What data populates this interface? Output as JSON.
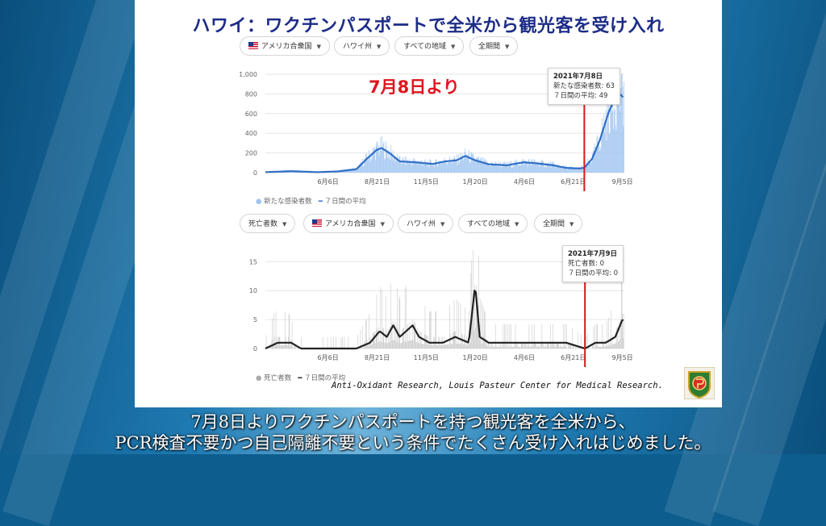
{
  "slide_title": "ハワイ：ワクチンパスポートで全米から観光客を受け入れ",
  "filters_top": [
    "アメリカ合衆国",
    "ハワイ州",
    "すべての地域",
    "全期間"
  ],
  "filters_bottom": [
    "死亡者数",
    "アメリカ合衆国",
    "ハワイ州",
    "すべての地域",
    "全期間"
  ],
  "overlay_label": "7月8日より",
  "tooltip_top": {
    "title": "2021年7月8日",
    "line1": "新たな感染者数: 63",
    "line2": "７日間の平均: 49"
  },
  "tooltip_bottom": {
    "title": "2021年7月9日",
    "line1": "死亡者数: 0",
    "line2": "７日間の平均: 0"
  },
  "legend_top": {
    "series1": "新たな感染者数",
    "series2": "７日間の平均"
  },
  "legend_bottom": {
    "series1": "死亡者数",
    "series2": "７日間の平均"
  },
  "credit": "Anti-Oxidant Research, Louis Pasteur Center for Medical Research.",
  "caption_line1": "7月8日よりワクチンパスポートを持つ観光客を全米から、",
  "caption_line2": "PCR検査不要かつ自己隔離不要という条件でたくさん受け入れはじめました。",
  "colors": {
    "title": "#1d2c88",
    "cases_bar": "#9ec3f0",
    "cases_line": "#2f6fc6",
    "deaths_bar": "#bdbdbd",
    "deaths_line": "#222222",
    "marker": "#e0141e"
  },
  "chart_data": [
    {
      "type": "bar",
      "x_tick_labels": [
        "6月6日",
        "8月21日",
        "11月5日",
        "1月20日",
        "4月6日",
        "6月21日",
        "9月5日"
      ],
      "y_tick_labels": [
        "0",
        "200",
        "400",
        "600",
        "800",
        "1,000"
      ],
      "ylim": [
        0,
        1000
      ],
      "x_range": [
        "2020-03-01",
        "2021-09-08"
      ],
      "marker_date": "2021-07-08",
      "series": [
        {
          "name": "新たな感染者数",
          "kind": "bar",
          "anchors": [
            [
              "2020-03-01",
              5
            ],
            [
              "2020-04-10",
              20
            ],
            [
              "2020-05-20",
              5
            ],
            [
              "2020-06-20",
              15
            ],
            [
              "2020-07-20",
              40
            ],
            [
              "2020-08-05",
              150
            ],
            [
              "2020-08-20",
              240
            ],
            [
              "2020-08-28",
              260
            ],
            [
              "2020-09-10",
              200
            ],
            [
              "2020-09-25",
              120
            ],
            [
              "2020-10-20",
              110
            ],
            [
              "2020-11-15",
              90
            ],
            [
              "2020-12-05",
              120
            ],
            [
              "2020-12-22",
              130
            ],
            [
              "2021-01-05",
              180
            ],
            [
              "2021-01-20",
              130
            ],
            [
              "2021-02-10",
              90
            ],
            [
              "2021-03-10",
              80
            ],
            [
              "2021-04-05",
              110
            ],
            [
              "2021-04-25",
              100
            ],
            [
              "2021-05-20",
              80
            ],
            [
              "2021-06-10",
              50
            ],
            [
              "2021-06-30",
              45
            ],
            [
              "2021-07-08",
              63
            ],
            [
              "2021-07-20",
              150
            ],
            [
              "2021-08-01",
              350
            ],
            [
              "2021-08-15",
              650
            ],
            [
              "2021-08-25",
              780
            ],
            [
              "2021-09-01",
              820
            ],
            [
              "2021-09-07",
              850
            ]
          ]
        },
        {
          "name": "７日間の平均",
          "kind": "line",
          "anchors": [
            [
              "2020-03-01",
              5
            ],
            [
              "2020-04-10",
              15
            ],
            [
              "2020-05-20",
              5
            ],
            [
              "2020-06-20",
              12
            ],
            [
              "2020-07-20",
              35
            ],
            [
              "2020-08-05",
              140
            ],
            [
              "2020-08-20",
              230
            ],
            [
              "2020-08-28",
              250
            ],
            [
              "2020-09-10",
              195
            ],
            [
              "2020-09-25",
              115
            ],
            [
              "2020-10-20",
              105
            ],
            [
              "2020-11-15",
              88
            ],
            [
              "2020-12-05",
              115
            ],
            [
              "2020-12-22",
              125
            ],
            [
              "2021-01-05",
              170
            ],
            [
              "2021-01-20",
              125
            ],
            [
              "2021-02-10",
              85
            ],
            [
              "2021-03-10",
              75
            ],
            [
              "2021-04-05",
              105
            ],
            [
              "2021-04-25",
              95
            ],
            [
              "2021-05-20",
              75
            ],
            [
              "2021-06-10",
              48
            ],
            [
              "2021-06-30",
              42
            ],
            [
              "2021-07-08",
              49
            ],
            [
              "2021-07-20",
              140
            ],
            [
              "2021-08-01",
              330
            ],
            [
              "2021-08-15",
              620
            ],
            [
              "2021-08-25",
              760
            ],
            [
              "2021-09-01",
              800
            ],
            [
              "2021-09-07",
              760
            ]
          ]
        }
      ]
    },
    {
      "type": "bar",
      "x_tick_labels": [
        "6月6日",
        "8月21日",
        "11月5日",
        "1月20日",
        "4月6日",
        "6月21日",
        "9月5日"
      ],
      "y_tick_labels": [
        "0",
        "5",
        "10",
        "15"
      ],
      "ylim": [
        0,
        17
      ],
      "x_range": [
        "2020-03-01",
        "2021-09-08"
      ],
      "marker_date": "2021-07-09",
      "series": [
        {
          "name": "死亡者数",
          "kind": "bar",
          "anchors": [
            [
              "2020-03-01",
              0
            ],
            [
              "2020-03-15",
              2
            ],
            [
              "2020-04-05",
              2
            ],
            [
              "2020-04-20",
              0
            ],
            [
              "2020-07-20",
              0
            ],
            [
              "2020-08-10",
              2
            ],
            [
              "2020-08-25",
              4
            ],
            [
              "2020-09-05",
              3
            ],
            [
              "2020-09-15",
              5
            ],
            [
              "2020-09-25",
              3
            ],
            [
              "2020-10-05",
              4
            ],
            [
              "2020-10-15",
              5
            ],
            [
              "2020-10-25",
              3
            ],
            [
              "2020-11-10",
              2
            ],
            [
              "2020-12-01",
              2
            ],
            [
              "2020-12-20",
              3
            ],
            [
              "2021-01-10",
              2
            ],
            [
              "2021-01-20",
              12
            ],
            [
              "2021-01-28",
              3
            ],
            [
              "2021-02-10",
              1
            ],
            [
              "2021-03-10",
              1
            ],
            [
              "2021-04-10",
              1
            ],
            [
              "2021-05-10",
              1
            ],
            [
              "2021-06-10",
              1
            ],
            [
              "2021-07-09",
              0
            ],
            [
              "2021-07-25",
              1
            ],
            [
              "2021-08-10",
              1
            ],
            [
              "2021-08-25",
              3
            ],
            [
              "2021-09-05",
              6
            ]
          ]
        },
        {
          "name": "７日間の平均",
          "kind": "line",
          "anchors": [
            [
              "2020-03-01",
              0
            ],
            [
              "2020-03-20",
              1
            ],
            [
              "2020-04-10",
              1
            ],
            [
              "2020-04-25",
              0
            ],
            [
              "2020-07-20",
              0
            ],
            [
              "2020-08-10",
              1
            ],
            [
              "2020-08-25",
              3
            ],
            [
              "2020-09-05",
              2
            ],
            [
              "2020-09-15",
              4
            ],
            [
              "2020-09-25",
              2
            ],
            [
              "2020-10-05",
              3
            ],
            [
              "2020-10-15",
              4
            ],
            [
              "2020-10-25",
              2
            ],
            [
              "2020-11-10",
              1
            ],
            [
              "2020-12-01",
              1
            ],
            [
              "2020-12-20",
              2
            ],
            [
              "2021-01-10",
              1
            ],
            [
              "2021-01-20",
              11
            ],
            [
              "2021-01-27",
              2
            ],
            [
              "2021-02-10",
              1
            ],
            [
              "2021-03-10",
              1
            ],
            [
              "2021-04-10",
              1
            ],
            [
              "2021-05-10",
              1
            ],
            [
              "2021-06-10",
              1
            ],
            [
              "2021-07-09",
              0
            ],
            [
              "2021-07-25",
              1
            ],
            [
              "2021-08-10",
              1
            ],
            [
              "2021-08-25",
              2
            ],
            [
              "2021-09-05",
              5
            ]
          ]
        }
      ]
    }
  ]
}
